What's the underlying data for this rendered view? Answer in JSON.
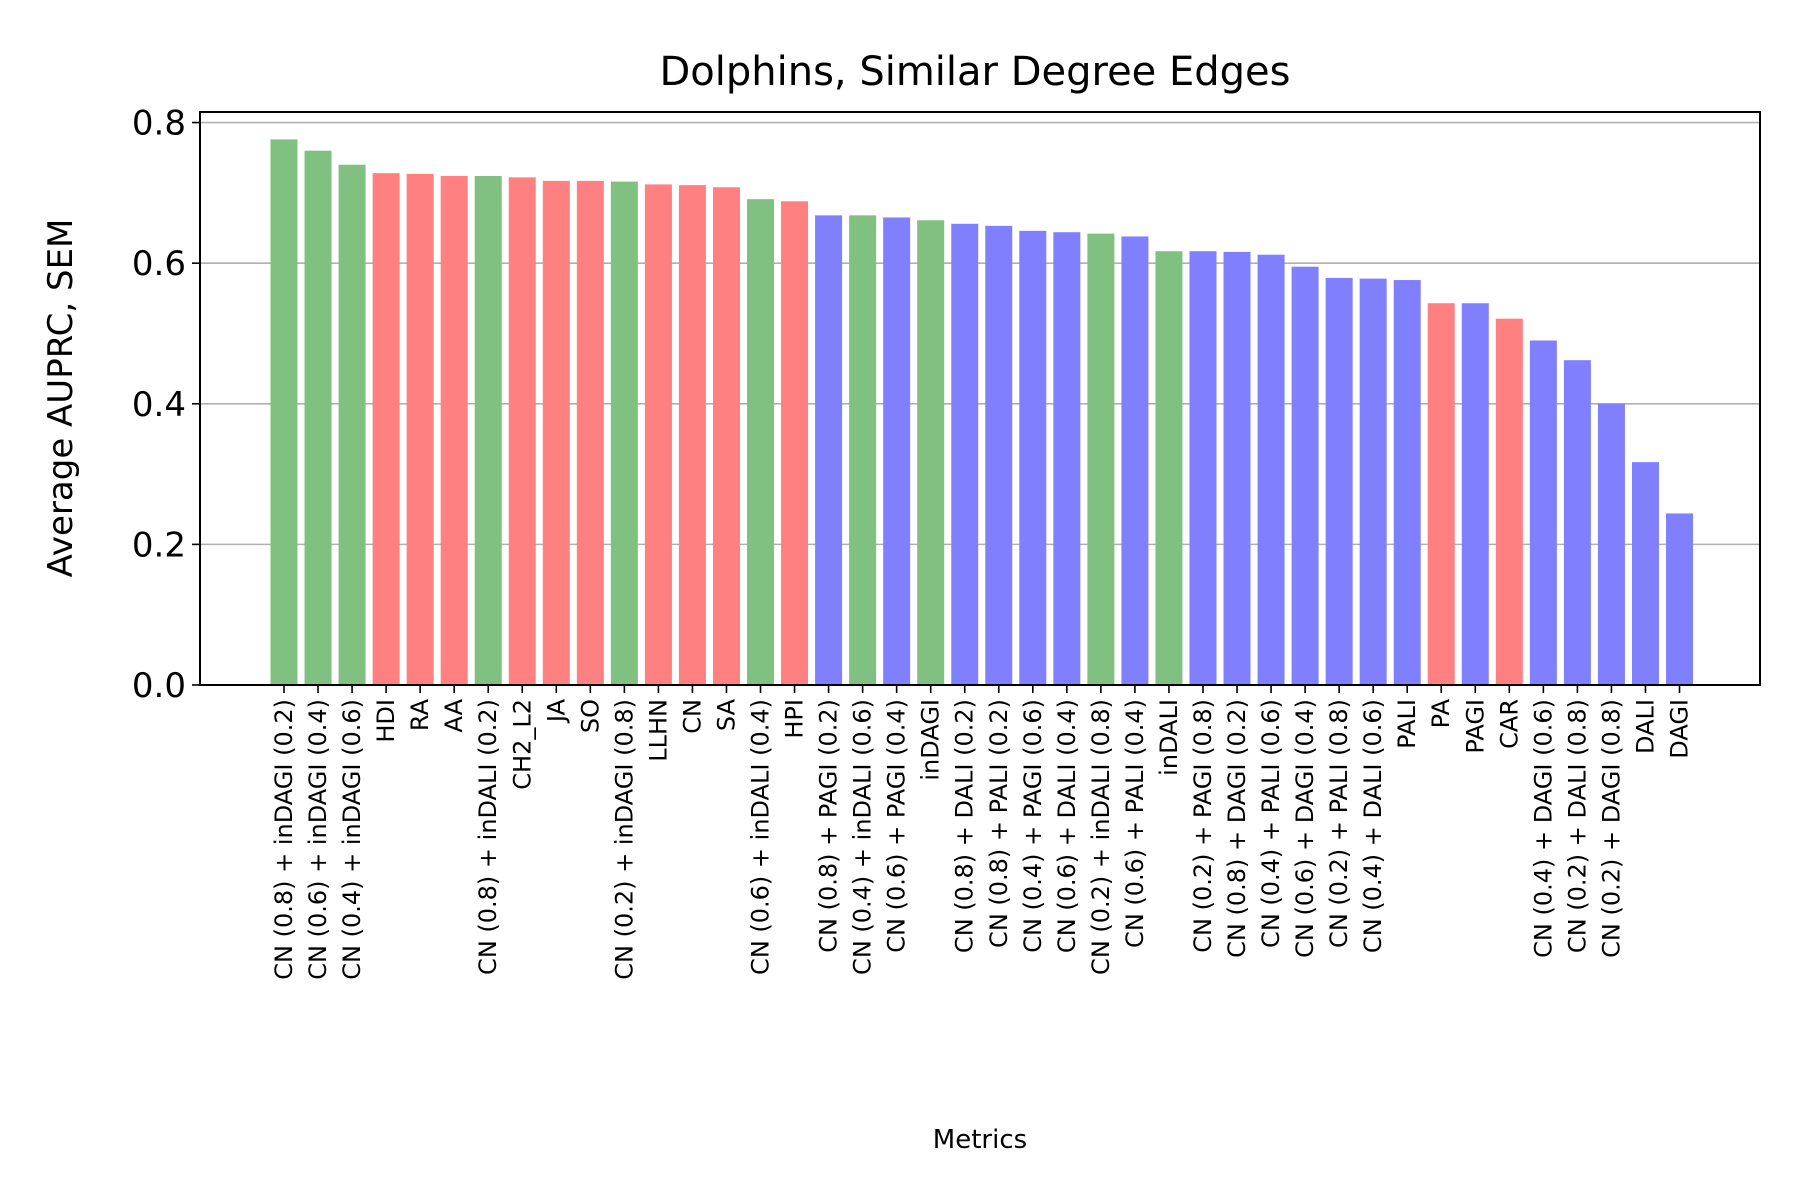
{
  "chart_data": {
    "type": "bar",
    "title": "Dolphins, Similar Degree Edges",
    "xlabel": "Metrics",
    "ylabel": "Average AUPRC, SEM",
    "ylim": [
      0,
      0.815
    ],
    "yticks": [
      "0.0",
      "0.2",
      "0.4",
      "0.6",
      "0.8"
    ],
    "grid": "horizontal",
    "colors": {
      "red": "#ff8080",
      "green": "#80c080",
      "blue": "#8080ff"
    },
    "categories": [
      "CN (0.8) + inDAGI (0.2)",
      "CN (0.6) + inDAGI (0.4)",
      "CN (0.4) + inDAGI (0.6)",
      "HDI",
      "RA",
      "AA",
      "CN (0.8) + inDALI (0.2)",
      "CH2_L2",
      "JA",
      "SO",
      "CN (0.2) + inDAGI (0.8)",
      "LLHN",
      "CN",
      "SA",
      "CN (0.6) + inDALI (0.4)",
      "HPI",
      "CN (0.8) + PAGI (0.2)",
      "CN (0.4) + inDALI (0.6)",
      "CN (0.6) + PAGI (0.4)",
      "inDAGI",
      "CN (0.8) + DALI (0.2)",
      "CN (0.8) + PALI (0.2)",
      "CN (0.4) + PAGI (0.6)",
      "CN (0.6) + DALI (0.4)",
      "CN (0.2) + inDALI (0.8)",
      "CN (0.6) + PALI (0.4)",
      "inDALI",
      "CN (0.2) + PAGI (0.8)",
      "CN (0.8) + DAGI (0.2)",
      "CN (0.4) + PALI (0.6)",
      "CN (0.6) + DAGI (0.4)",
      "CN (0.2) + PALI (0.8)",
      "CN (0.4) + DALI (0.6)",
      "PALI",
      "PA",
      "PAGI",
      "CAR",
      "CN (0.4) + DAGI (0.6)",
      "CN (0.2) + DALI (0.8)",
      "CN (0.2) + DAGI (0.8)",
      "DALI",
      "DAGI"
    ],
    "values": [
      0.776,
      0.76,
      0.74,
      0.728,
      0.727,
      0.724,
      0.724,
      0.722,
      0.717,
      0.717,
      0.716,
      0.712,
      0.711,
      0.708,
      0.691,
      0.688,
      0.668,
      0.668,
      0.665,
      0.661,
      0.656,
      0.653,
      0.646,
      0.644,
      0.642,
      0.638,
      0.617,
      0.617,
      0.616,
      0.612,
      0.595,
      0.579,
      0.578,
      0.576,
      0.543,
      0.543,
      0.521,
      0.49,
      0.462,
      0.4,
      0.317,
      0.244
    ],
    "bar_colors": [
      "green",
      "green",
      "green",
      "red",
      "red",
      "red",
      "green",
      "red",
      "red",
      "red",
      "green",
      "red",
      "red",
      "red",
      "green",
      "red",
      "blue",
      "green",
      "blue",
      "green",
      "blue",
      "blue",
      "blue",
      "blue",
      "green",
      "blue",
      "green",
      "blue",
      "blue",
      "blue",
      "blue",
      "blue",
      "blue",
      "blue",
      "red",
      "blue",
      "red",
      "blue",
      "blue",
      "blue",
      "blue",
      "blue"
    ]
  }
}
